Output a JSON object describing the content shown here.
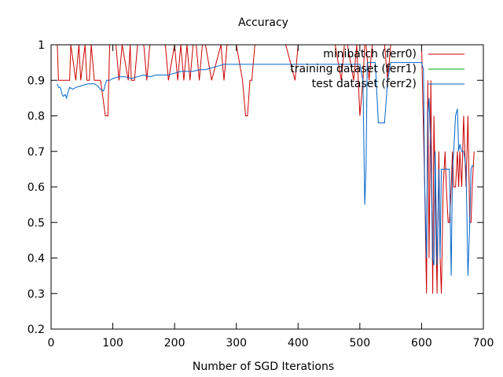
{
  "chart_data": {
    "type": "line",
    "title": "Accuracy",
    "xlabel": "Number of SGD Iterations",
    "ylabel": "",
    "xlim": [
      0,
      700
    ],
    "ylim": [
      0.2,
      1
    ],
    "xticks": [
      "0",
      "100",
      "200",
      "300",
      "400",
      "500",
      "600",
      "700"
    ],
    "yticks": [
      "0.2",
      "0.3",
      "0.4",
      "0.5",
      "0.6",
      "0.7",
      "0.8",
      "0.9",
      "1"
    ],
    "grid": false,
    "legend_position": "top-right",
    "series": [
      {
        "name": "minibatch (ferr0)",
        "color": "#cc0000",
        "x": [
          10,
          12,
          15,
          30,
          32,
          40,
          45,
          48,
          55,
          58,
          62,
          65,
          70,
          75,
          80,
          88,
          90,
          92,
          95,
          100,
          105,
          110,
          115,
          125,
          128,
          130,
          135,
          140,
          150,
          155,
          160,
          170,
          185,
          190,
          200,
          205,
          210,
          215,
          220,
          225,
          230,
          235,
          240,
          245,
          250,
          260,
          275,
          280,
          285,
          290,
          300,
          310,
          315,
          318,
          322,
          325,
          330,
          340,
          360,
          380,
          395,
          400,
          420,
          440,
          450,
          460,
          470,
          475,
          480,
          490,
          495,
          500,
          505,
          508,
          510,
          515,
          520,
          530,
          540,
          545,
          550,
          560,
          570,
          580,
          590,
          600,
          605,
          608,
          610,
          612,
          615,
          618,
          620,
          622,
          625,
          628,
          630,
          632,
          635,
          638,
          640,
          643,
          645,
          648,
          650,
          652,
          655,
          658,
          660,
          662,
          665,
          668,
          670,
          672,
          675,
          678,
          680,
          682,
          685
        ],
        "y": [
          1,
          0.9,
          0.9,
          0.9,
          1,
          0.9,
          1,
          0.9,
          1,
          0.9,
          0.9,
          1,
          0.9,
          0.9,
          0.9,
          0.8,
          0.8,
          0.8,
          1,
          1,
          1,
          0.9,
          1,
          0.9,
          1,
          0.9,
          0.9,
          1,
          1,
          0.9,
          1,
          1,
          1,
          0.9,
          1,
          0.9,
          1,
          0.9,
          1,
          0.9,
          1,
          1,
          0.9,
          1,
          1,
          0.9,
          1,
          0.9,
          1,
          1,
          1,
          0.9,
          0.8,
          0.8,
          0.9,
          0.9,
          1,
          1,
          1,
          1,
          0.9,
          1,
          1,
          1,
          1,
          1,
          0.9,
          1,
          1,
          0.9,
          1,
          0.8,
          0.9,
          1,
          1,
          0.9,
          1,
          1,
          1,
          0.9,
          1,
          1,
          1,
          1,
          1,
          1,
          0.6,
          0.3,
          0.9,
          0.4,
          0.9,
          0.3,
          0.8,
          0.6,
          0.3,
          0.7,
          0.4,
          0.3,
          0.6,
          0.7,
          0.6,
          0.5,
          0.5,
          0.6,
          0.7,
          0.6,
          0.6,
          0.7,
          0.6,
          0.7,
          0.6,
          0.8,
          0.7,
          0.6,
          0.8,
          0.5,
          0.5,
          0.6,
          0.7
        ]
      },
      {
        "name": "training dataset (ferr1)",
        "color": "#00aa00",
        "x": [],
        "y": []
      },
      {
        "name": "test dataset (ferr2)",
        "color": "#0066cc",
        "x": [
          10,
          12,
          15,
          18,
          20,
          23,
          25,
          28,
          30,
          35,
          40,
          50,
          60,
          70,
          75,
          80,
          85,
          88,
          90,
          95,
          100,
          110,
          120,
          130,
          140,
          150,
          160,
          170,
          180,
          190,
          200,
          210,
          220,
          230,
          240,
          250,
          260,
          270,
          280,
          290,
          300,
          320,
          340,
          360,
          380,
          400,
          420,
          440,
          460,
          480,
          500,
          505,
          508,
          510,
          512,
          515,
          520,
          525,
          530,
          540,
          545,
          550,
          560,
          570,
          580,
          590,
          600,
          603,
          605,
          608,
          610,
          612,
          615,
          618,
          620,
          622,
          625,
          628,
          630,
          632,
          635,
          638,
          640,
          643,
          645,
          648,
          650,
          652,
          655,
          658,
          660,
          662,
          665,
          668,
          670,
          672,
          675,
          678,
          680,
          682,
          685
        ],
        "y": [
          0.89,
          0.88,
          0.88,
          0.86,
          0.855,
          0.86,
          0.85,
          0.87,
          0.88,
          0.875,
          0.88,
          0.885,
          0.89,
          0.89,
          0.885,
          0.875,
          0.87,
          0.89,
          0.9,
          0.9,
          0.905,
          0.91,
          0.91,
          0.905,
          0.91,
          0.915,
          0.91,
          0.915,
          0.915,
          0.915,
          0.92,
          0.925,
          0.925,
          0.925,
          0.93,
          0.93,
          0.935,
          0.94,
          0.945,
          0.945,
          0.945,
          0.945,
          0.945,
          0.945,
          0.945,
          0.945,
          0.945,
          0.945,
          0.945,
          0.945,
          0.945,
          0.9,
          0.55,
          0.65,
          0.95,
          0.95,
          0.95,
          0.95,
          0.78,
          0.78,
          0.9,
          0.95,
          0.95,
          0.95,
          0.95,
          0.95,
          0.95,
          0.93,
          0.6,
          0.4,
          0.8,
          0.85,
          0.7,
          0.4,
          0.38,
          0.7,
          0.38,
          0.65,
          0.4,
          0.65,
          0.65,
          0.65,
          0.65,
          0.65,
          0.65,
          0.35,
          0.65,
          0.7,
          0.8,
          0.82,
          0.7,
          0.72,
          0.7,
          0.7,
          0.68,
          0.65,
          0.35,
          0.5,
          0.65,
          0.66,
          0.66
        ]
      }
    ]
  }
}
